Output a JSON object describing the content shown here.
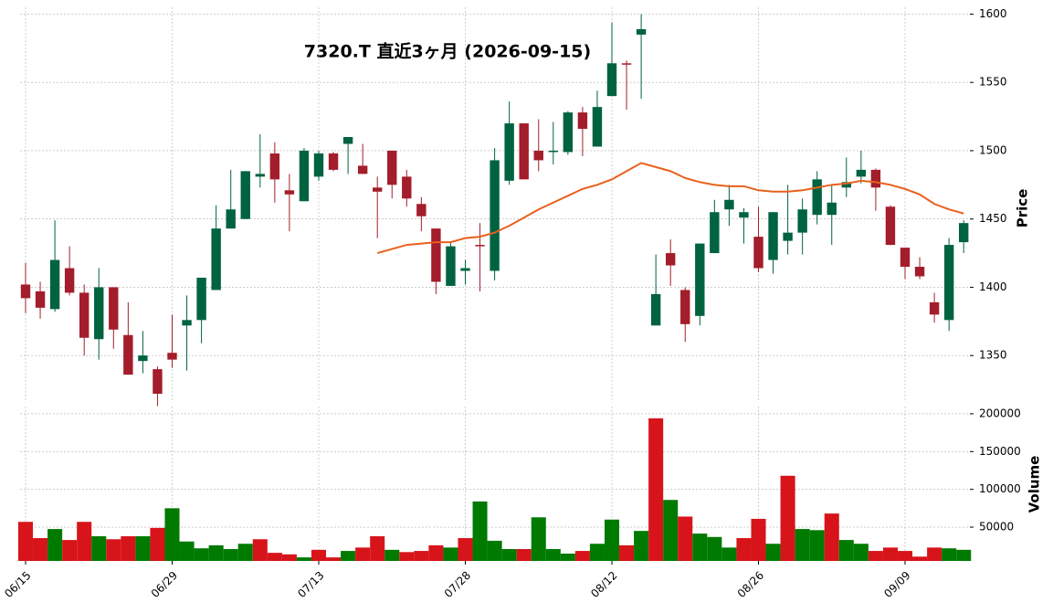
{
  "chart_data": [
    {
      "type": "candlestick",
      "title": "7320.T  直近3ヶ月  (2026-09-15)",
      "ylabel": "Price",
      "open": [
        1402,
        1397,
        1384,
        1414,
        1396,
        1362,
        1400,
        1365,
        1346,
        1340,
        1352,
        1372,
        1376,
        1398,
        1443,
        1450,
        1481,
        1498,
        1471,
        1463,
        1481,
        1498,
        1505,
        1489,
        1473,
        1500,
        1481,
        1461,
        1443,
        1401,
        1412,
        1431,
        1412,
        1478,
        1520,
        1500,
        1499,
        1499,
        1528,
        1503,
        1540,
        1564,
        1585,
        1372,
        1425,
        1398,
        1379,
        1425,
        1457,
        1451,
        1437,
        1420,
        1434,
        1440,
        1453,
        1453,
        1473,
        1481,
        1486,
        1459,
        1429,
        1415,
        1389,
        1376,
        1433
      ],
      "high": [
        1418,
        1404,
        1449,
        1430,
        1402,
        1414,
        1400,
        1389,
        1368,
        1342,
        1380,
        1394,
        1407,
        1460,
        1486,
        1485,
        1512,
        1506,
        1483,
        1502,
        1500,
        1499,
        1510,
        1505,
        1481,
        1500,
        1486,
        1466,
        1443,
        1433,
        1420,
        1447,
        1502,
        1536,
        1520,
        1523,
        1521,
        1529,
        1532,
        1544,
        1594,
        1566,
        1600,
        1424,
        1435,
        1400,
        1432,
        1464,
        1475,
        1458,
        1459,
        1455,
        1475,
        1465,
        1485,
        1475,
        1495,
        1500,
        1487,
        1460,
        1429,
        1422,
        1396,
        1436,
        1449
      ],
      "low": [
        1381,
        1377,
        1382,
        1394,
        1350,
        1347,
        1355,
        1336,
        1337,
        1313,
        1341,
        1339,
        1359,
        1398,
        1443,
        1450,
        1473,
        1462,
        1441,
        1463,
        1478,
        1485,
        1483,
        1483,
        1436,
        1465,
        1459,
        1441,
        1395,
        1401,
        1402,
        1397,
        1405,
        1475,
        1479,
        1485,
        1490,
        1497,
        1496,
        1503,
        1540,
        1530,
        1538,
        1372,
        1401,
        1360,
        1372,
        1425,
        1445,
        1432,
        1411,
        1410,
        1424,
        1424,
        1446,
        1431,
        1466,
        1476,
        1456,
        1431,
        1406,
        1406,
        1374,
        1368,
        1425
      ],
      "close": [
        1392,
        1385,
        1420,
        1396,
        1363,
        1400,
        1369,
        1336,
        1350,
        1322,
        1347,
        1376,
        1407,
        1443,
        1457,
        1485,
        1483,
        1479,
        1468,
        1500,
        1498,
        1486,
        1510,
        1483,
        1470,
        1475,
        1465,
        1452,
        1404,
        1430,
        1414,
        1430,
        1493,
        1520,
        1479,
        1493,
        1500,
        1528,
        1516,
        1532,
        1564,
        1563,
        1589,
        1395,
        1416,
        1373,
        1432,
        1455,
        1464,
        1455,
        1414,
        1455,
        1440,
        1457,
        1479,
        1462,
        1477,
        1486,
        1473,
        1431,
        1415,
        1408,
        1380,
        1431,
        1447
      ],
      "ma_values": [
        null,
        null,
        null,
        null,
        null,
        null,
        null,
        null,
        null,
        null,
        null,
        null,
        null,
        null,
        null,
        null,
        null,
        null,
        null,
        null,
        null,
        null,
        null,
        null,
        1425,
        1428,
        1431,
        1432,
        1433,
        1433,
        1436,
        1437,
        1440,
        1445,
        1451,
        1457,
        1462,
        1467,
        1472,
        1475,
        1479,
        1485,
        1491,
        1488,
        1485,
        1480,
        1477,
        1475,
        1474,
        1474,
        1471,
        1470,
        1470,
        1471,
        1473,
        1475,
        1476,
        1478,
        1477,
        1475,
        1472,
        1468,
        1461,
        1457,
        1454
      ],
      "ma_color": "#e8601c",
      "up_color": "#006340",
      "down_color": "#a31d2a",
      "ylim": [
        1316,
        1605
      ],
      "yticks": [
        1350,
        1400,
        1450,
        1500,
        1550,
        1600
      ],
      "grid": true
    },
    {
      "type": "bar",
      "ylabel": "Volume",
      "categories": [
        "06/15",
        null,
        null,
        null,
        null,
        null,
        null,
        null,
        null,
        null,
        "06/29",
        null,
        null,
        null,
        null,
        null,
        null,
        null,
        null,
        null,
        "07/13",
        null,
        null,
        null,
        null,
        null,
        null,
        null,
        null,
        null,
        "07/28",
        null,
        null,
        null,
        null,
        null,
        null,
        null,
        null,
        null,
        "08/12",
        null,
        null,
        null,
        null,
        null,
        null,
        null,
        null,
        null,
        "08/26",
        null,
        null,
        null,
        null,
        null,
        null,
        null,
        null,
        null,
        "09/09",
        null,
        null,
        null,
        null
      ],
      "values": [
        57000,
        35500,
        47500,
        33000,
        57000,
        38000,
        34000,
        38000,
        38000,
        49000,
        75000,
        31000,
        22000,
        26000,
        21000,
        28000,
        34000,
        16000,
        14000,
        10000,
        20000,
        10000,
        18500,
        23000,
        38000,
        20000,
        17000,
        18500,
        26000,
        23000,
        35500,
        84000,
        32000,
        21000,
        21000,
        63000,
        21000,
        15000,
        18500,
        28000,
        60000,
        26000,
        45000,
        194000,
        86000,
        64000,
        41500,
        37000,
        23000,
        35500,
        61000,
        28000,
        118000,
        47500,
        46000,
        68000,
        33000,
        28000,
        18500,
        23000,
        18500,
        11000,
        23000,
        22000,
        20000
      ],
      "up_color": "#007a00",
      "down_color": "#d7141a",
      "ylim": [
        5300,
        209600
      ],
      "yticks": [
        50000,
        100000,
        150000,
        200000
      ],
      "grid": true
    }
  ]
}
